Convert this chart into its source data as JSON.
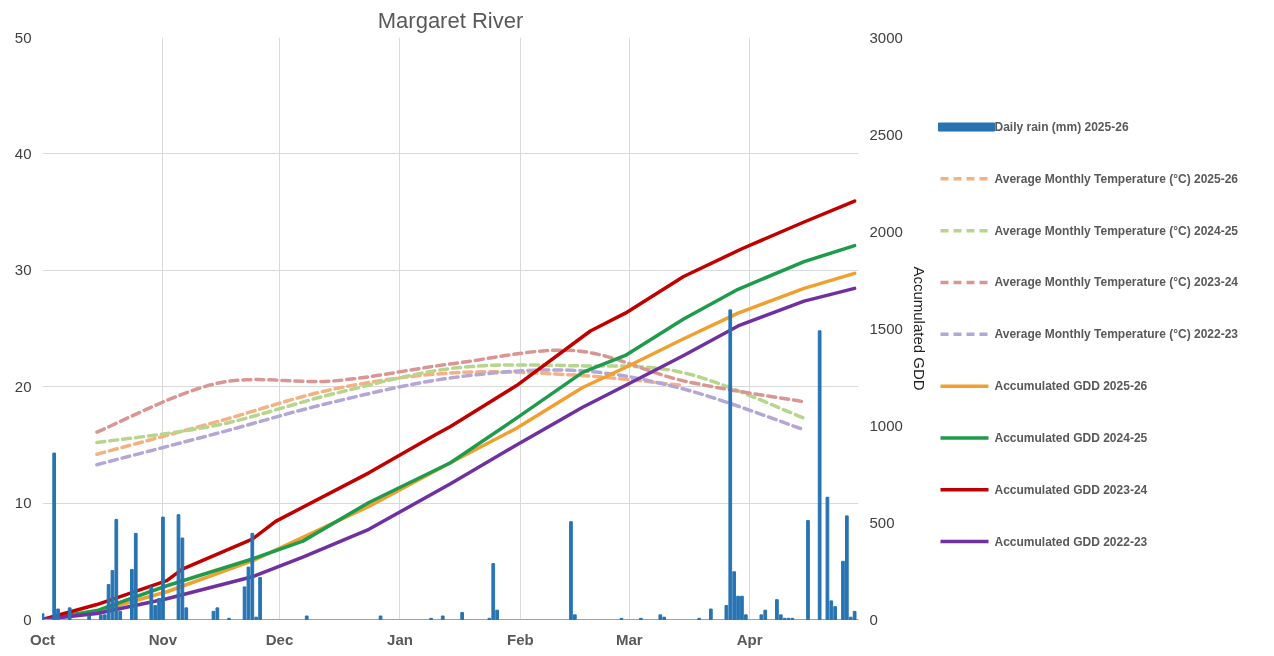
{
  "chart_data": {
    "type": "line",
    "title": "Margaret River",
    "y2label": "Accumulated GDD",
    "xlim": [
      "2025-10-01",
      "2026-04-29"
    ],
    "xticks": [
      {
        "value": "2025-10-01",
        "label": "Oct"
      },
      {
        "value": "2025-11-01",
        "label": "Nov"
      },
      {
        "value": "2025-12-01",
        "label": "Dec"
      },
      {
        "value": "2026-01-01",
        "label": "Jan"
      },
      {
        "value": "2026-02-01",
        "label": "Feb"
      },
      {
        "value": "2026-03-01",
        "label": "Mar"
      },
      {
        "value": "2026-04-01",
        "label": "Apr"
      }
    ],
    "ylim": [
      0,
      50
    ],
    "yticks": [
      0,
      10,
      20,
      30,
      40,
      50
    ],
    "y2lim": [
      0,
      3000
    ],
    "y2ticks": [
      0,
      500,
      1000,
      1500,
      2000,
      2500,
      3000
    ],
    "grid": true,
    "legend": "right",
    "series": [
      {
        "name": "Daily rain (mm) 2025-26",
        "type": "bar",
        "color": "#2874b2",
        "x": [
          "2025-10-01",
          "2025-10-04",
          "2025-10-05",
          "2025-10-08",
          "2025-10-13",
          "2025-10-16",
          "2025-10-17",
          "2025-10-18",
          "2025-10-19",
          "2025-10-20",
          "2025-10-21",
          "2025-10-24",
          "2025-10-25",
          "2025-10-29",
          "2025-10-30",
          "2025-10-31",
          "2025-11-01",
          "2025-11-05",
          "2025-11-06",
          "2025-11-07",
          "2025-11-14",
          "2025-11-15",
          "2025-11-18",
          "2025-11-22",
          "2025-11-23",
          "2025-11-24",
          "2025-11-25",
          "2025-11-26",
          "2025-12-08",
          "2025-12-27",
          "2026-01-09",
          "2026-01-12",
          "2026-01-17",
          "2026-01-24",
          "2026-01-25",
          "2026-01-26",
          "2026-02-14",
          "2026-02-15",
          "2026-02-27",
          "2026-03-04",
          "2026-03-09",
          "2026-03-10",
          "2026-03-19",
          "2026-03-22",
          "2026-03-26",
          "2026-03-27",
          "2026-03-28",
          "2026-03-29",
          "2026-03-30",
          "2026-03-31",
          "2026-04-04",
          "2026-04-05",
          "2026-04-08",
          "2026-04-09",
          "2026-04-10",
          "2026-04-11",
          "2026-04-12",
          "2026-04-16",
          "2026-04-19",
          "2026-04-21",
          "2026-04-22",
          "2026-04-23",
          "2026-04-25",
          "2026-04-26",
          "2026-04-27",
          "2026-04-28"
        ],
        "values": [
          0.5,
          14.3,
          0.9,
          1.0,
          0.3,
          0.4,
          0.4,
          3.0,
          4.2,
          8.6,
          0.7,
          4.3,
          7.4,
          2.8,
          1.2,
          1.8,
          8.8,
          9.0,
          7.0,
          1.0,
          0.7,
          1.0,
          0.1,
          2.8,
          4.5,
          7.4,
          0.2,
          3.6,
          0.3,
          0.3,
          0.1,
          0.3,
          0.6,
          0.1,
          4.8,
          0.8,
          8.4,
          0.4,
          0.1,
          0.1,
          0.4,
          0.2,
          0.1,
          0.9,
          1.2,
          26.6,
          4.1,
          2.0,
          2.0,
          0.4,
          0.4,
          0.8,
          1.7,
          0.4,
          0.1,
          0.1,
          0.1,
          8.5,
          24.8,
          10.5,
          1.6,
          1.1,
          5.0,
          8.9,
          0.2,
          0.7
        ]
      },
      {
        "name": "Average Monthly Temperature (°C) 2025-26",
        "line_style": "dashed",
        "color": "#f4b183",
        "x": [
          "2025-10-15",
          "2025-11-15",
          "2025-12-15",
          "2026-01-15",
          "2026-02-15",
          "2026-03-15"
        ],
        "values": [
          14.2,
          17.0,
          19.8,
          21.2,
          21.0,
          20.1
        ]
      },
      {
        "name": "Average Monthly Temperature (°C) 2024-25",
        "line_style": "dashed",
        "color": "#b8d58e",
        "x": [
          "2025-10-15",
          "2025-11-15",
          "2025-12-15",
          "2026-01-15",
          "2026-02-15",
          "2026-03-15",
          "2026-04-15"
        ],
        "values": [
          15.2,
          16.7,
          19.4,
          21.6,
          21.8,
          21.2,
          17.3
        ]
      },
      {
        "name": "Average Monthly Temperature (°C) 2023-24",
        "line_style": "dashed",
        "color": "#d99694",
        "x": [
          "2025-10-15",
          "2025-11-15",
          "2025-12-15",
          "2026-01-15",
          "2026-02-15",
          "2026-03-15",
          "2026-04-15"
        ],
        "values": [
          16.1,
          20.3,
          20.5,
          22.0,
          23.1,
          20.5,
          18.7
        ]
      },
      {
        "name": "Average Monthly Temperature (°C) 2022-23",
        "line_style": "dashed",
        "color": "#b4a7d6",
        "x": [
          "2025-10-15",
          "2025-11-15",
          "2025-12-15",
          "2026-01-15",
          "2026-02-15",
          "2026-03-15",
          "2026-04-15"
        ],
        "values": [
          13.3,
          16.0,
          18.7,
          20.8,
          21.4,
          19.8,
          16.3
        ]
      },
      {
        "name": "Accumulated GDD 2025-26",
        "axis": "y2",
        "color": "#f0a030",
        "x": [
          "2025-10-01",
          "2025-10-15",
          "2025-11-02",
          "2025-11-24",
          "2025-12-24",
          "2026-01-14",
          "2026-01-31",
          "2026-02-17",
          "2026-02-28",
          "2026-03-15",
          "2026-03-29",
          "2026-04-15",
          "2026-04-28"
        ],
        "values": [
          0,
          41,
          143,
          302,
          583,
          808,
          986,
          1196,
          1299,
          1447,
          1579,
          1707,
          1784
        ]
      },
      {
        "name": "Accumulated GDD 2024-25",
        "axis": "y2",
        "color": "#1e9b4b",
        "x": [
          "2025-10-01",
          "2025-10-15",
          "2025-11-02",
          "2025-11-24",
          "2025-12-07",
          "2025-12-24",
          "2026-01-14",
          "2026-01-31",
          "2026-02-17",
          "2026-02-28",
          "2026-03-15",
          "2026-03-29",
          "2026-04-15",
          "2026-04-28"
        ],
        "values": [
          0,
          46,
          174,
          312,
          404,
          603,
          808,
          1038,
          1274,
          1361,
          1549,
          1702,
          1845,
          1927
        ]
      },
      {
        "name": "Accumulated GDD 2023-24",
        "axis": "y2",
        "color": "#c00000",
        "x": [
          "2025-10-01",
          "2025-10-15",
          "2025-11-02",
          "2025-11-06",
          "2025-11-24",
          "2025-11-30",
          "2025-12-24",
          "2026-01-10",
          "2026-01-14",
          "2026-01-31",
          "2026-02-19",
          "2026-02-28",
          "2026-03-15",
          "2026-03-30",
          "2026-04-15",
          "2026-04-28"
        ],
        "values": [
          0,
          77,
          200,
          260,
          414,
          506,
          756,
          951,
          995,
          1206,
          1487,
          1579,
          1768,
          1911,
          2049,
          2157
        ]
      },
      {
        "name": "Accumulated GDD 2022-23",
        "axis": "y2",
        "color": "#7030a0",
        "x": [
          "2025-10-01",
          "2025-10-15",
          "2025-11-02",
          "2025-11-24",
          "2025-12-07",
          "2025-12-24",
          "2026-01-14",
          "2026-01-31",
          "2026-02-17",
          "2026-02-28",
          "2026-03-15",
          "2026-03-29",
          "2026-04-15",
          "2026-04-28"
        ],
        "values": [
          0,
          31,
          107,
          220,
          322,
          465,
          700,
          900,
          1094,
          1206,
          1361,
          1513,
          1641,
          1707
        ]
      }
    ]
  }
}
